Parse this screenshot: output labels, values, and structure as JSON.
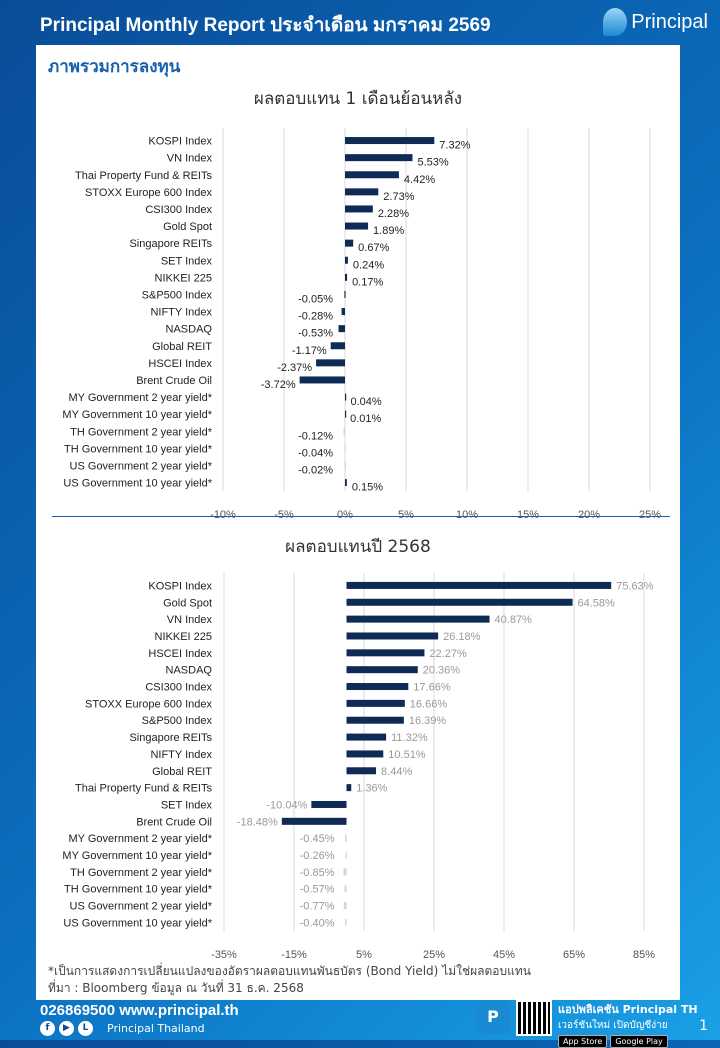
{
  "header": {
    "title": "Principal Monthly Report ประจำเดือน มกราคม 2569",
    "logo": "Principal"
  },
  "section_title": "ภาพรวมการลงทุน",
  "chart_data": [
    {
      "type": "bar",
      "orientation": "horizontal",
      "title": "ผลตอบแทน 1 เดือนย้อนหลัง",
      "xlim": [
        -10,
        25
      ],
      "ticks": [
        -10,
        -5,
        0,
        5,
        10,
        15,
        20,
        25
      ],
      "tick_labels": [
        "-10%",
        "-5%",
        "0%",
        "5%",
        "10%",
        "15%",
        "20%",
        "25%"
      ],
      "grid": true,
      "categories": [
        "KOSPI Index",
        "VN Index",
        "Thai Property Fund & REITs",
        "STOXX Europe 600 Index",
        "CSI300 Index",
        "Gold Spot",
        "Singapore REITs",
        "SET Index",
        "NIKKEI 225",
        "S&P500 Index",
        "NIFTY Index",
        "NASDAQ",
        "Global REIT",
        "HSCEI Index",
        "Brent Crude Oil",
        "MY Government 2 year yield*",
        "MY Government 10 year yield*",
        "TH Government 2 year yield*",
        "TH Government 10 year yield*",
        "US Government 2 year yield*",
        "US Government 10 year yield*"
      ],
      "values": [
        7.32,
        5.53,
        4.42,
        2.73,
        2.28,
        1.89,
        0.67,
        0.24,
        0.17,
        -0.05,
        -0.28,
        -0.53,
        -1.17,
        -2.37,
        -3.72,
        0.04,
        0.01,
        -0.12,
        -0.04,
        -0.02,
        0.15
      ],
      "data_labels": [
        "7.32%",
        "5.53%",
        "4.42%",
        "2.73%",
        "2.28%",
        "1.89%",
        "0.67%",
        "0.24%",
        "0.17%",
        "-0.05%",
        "-0.28%",
        "-0.53%",
        "-1.17%",
        "-2.37%",
        "-3.72%",
        "0.04%",
        "0.01%",
        "-0.12%",
        "-0.04%",
        "-0.02%",
        "0.15%"
      ]
    },
    {
      "type": "bar",
      "orientation": "horizontal",
      "title": "ผลตอบแทนปี 2568",
      "xlim": [
        -35,
        85
      ],
      "ticks": [
        -35,
        -15,
        5,
        25,
        45,
        65,
        85
      ],
      "tick_labels": [
        "-35%",
        "-15%",
        "5%",
        "25%",
        "45%",
        "65%",
        "85%"
      ],
      "grid": true,
      "categories": [
        "KOSPI Index",
        "Gold Spot",
        "VN Index",
        "NIKKEI 225",
        "HSCEI Index",
        "NASDAQ",
        "CSI300 Index",
        "STOXX Europe 600 Index",
        "S&P500 Index",
        "Singapore REITs",
        "NIFTY Index",
        "Global REIT",
        "Thai Property Fund & REITs",
        "SET Index",
        "Brent Crude Oil",
        "MY Government 2 year yield*",
        "MY Government 10 year yield*",
        "TH Government 2 year yield*",
        "TH Government 10 year yield*",
        "US Government 2 year yield*",
        "US Government 10 year yield*"
      ],
      "values": [
        75.63,
        64.58,
        40.87,
        26.18,
        22.27,
        20.36,
        17.66,
        16.66,
        16.39,
        11.32,
        10.51,
        8.44,
        1.36,
        -10.04,
        -18.48,
        -0.45,
        -0.26,
        -0.85,
        -0.57,
        -0.77,
        -0.4
      ],
      "data_labels": [
        "75.63%",
        "64.58%",
        "40.87%",
        "26.18%",
        "22.27%",
        "20.36%",
        "17.66%",
        "16.66%",
        "16.39%",
        "11.32%",
        "10.51%",
        "8.44%",
        "1.36%",
        "-10.04%",
        "-18.48%",
        "-0.45%",
        "-0.26%",
        "-0.85%",
        "-0.57%",
        "-0.77%",
        "-0.40%"
      ]
    }
  ],
  "colors": {
    "bar": "#0d2b55",
    "bond_bar": "#c9d6e3",
    "brand": "#1660b0"
  },
  "note": "*เป็นการแสดงการเปลี่ยนแปลงของอัตราผลตอบแทนพันธบัตร (Bond Yield) ไม่ใช่ผลตอบแทน",
  "source": "ที่มา : Bloomberg ข้อมูล ณ วันที่ 31 ธ.ค. 2568",
  "footer": {
    "contact": "026869500 www.principal.th",
    "social": "Principal Thailand",
    "app_title": "แอปพลิเคชัน Principal TH",
    "app_sub": "เวอร์ชันใหม่ เปิดบัญชีง่าย",
    "app_store": "App Store",
    "google_play": "Google Play",
    "app_icon_label": "Principal TH",
    "page": "1"
  }
}
